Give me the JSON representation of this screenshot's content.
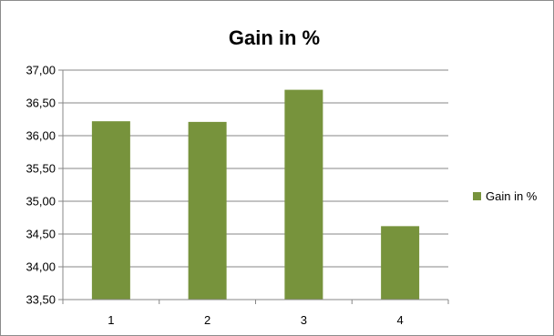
{
  "chart_data": {
    "type": "bar",
    "title": "Gain in %",
    "categories": [
      "1",
      "2",
      "3",
      "4"
    ],
    "series": [
      {
        "name": "Gain in %",
        "values": [
          36.22,
          36.21,
          36.7,
          34.62
        ],
        "color": "#77933c"
      }
    ],
    "ylim": [
      33.5,
      37.0
    ],
    "ytick_step": 0.5,
    "ytick_labels": [
      "33,50",
      "34,00",
      "34,50",
      "35,00",
      "35,50",
      "36,00",
      "36,50",
      "37,00"
    ],
    "grid": true,
    "legend_position": "right",
    "gridline_color": "#878787",
    "axis_color": "#878787"
  }
}
